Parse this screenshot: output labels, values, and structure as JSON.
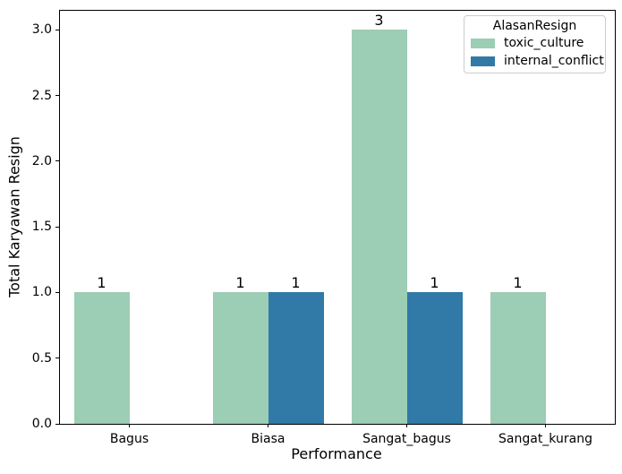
{
  "chart_data": {
    "type": "bar",
    "title": "",
    "xlabel": "Performance",
    "ylabel": "Total Karyawan Resign",
    "categories": [
      "Bagus",
      "Biasa",
      "Sangat_bagus",
      "Sangat_kurang"
    ],
    "series": [
      {
        "name": "toxic_culture",
        "color": "#9CCDB5",
        "values": [
          1,
          1,
          3,
          1
        ]
      },
      {
        "name": "internal_conflict",
        "color": "#3179A6",
        "values": [
          null,
          1,
          1,
          null
        ]
      }
    ],
    "bar_value_labels": [
      [
        "1",
        "1",
        "3",
        "1"
      ],
      [
        null,
        "1",
        "1",
        null
      ]
    ],
    "yticks": [
      0.0,
      0.5,
      1.0,
      1.5,
      2.0,
      2.5,
      3.0
    ],
    "ytick_labels": [
      "0.0",
      "0.5",
      "1.0",
      "1.5",
      "2.0",
      "2.5",
      "3.0"
    ],
    "ylim": [
      0,
      3.145
    ],
    "grid": false,
    "legend": {
      "title": "AlasanResign",
      "position": "upper right",
      "entries": [
        "toxic_culture",
        "internal_conflict"
      ]
    }
  }
}
